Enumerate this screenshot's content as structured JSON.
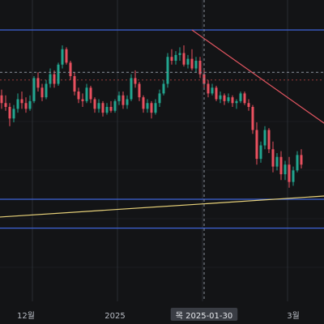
{
  "colors": {
    "background": "#131416",
    "grid": "#2a2d33",
    "up": "#22a58f",
    "down": "#e8505f",
    "horizontal_line": "#3e63d8",
    "resistance_trendline": "#e05560",
    "support_trendline": "#e8d27a",
    "crosshair": "#8a8f99",
    "reference_line": "#cf4a4a",
    "crosshair_tag": "#3a3d44"
  },
  "crosshair_label": "목 2025-01-30",
  "chart_data": {
    "type": "candlestick",
    "title": "",
    "xlabel": "",
    "ylabel": "",
    "x_axis_labels": [
      "12월",
      "2025",
      "3월"
    ],
    "y_axis_labels": [],
    "grid": true,
    "legend": "none",
    "ylim": [
      0,
      100
    ],
    "price_scale_note": "no price values printed; y in relative units 0-100",
    "candles": [
      {
        "o": 66,
        "h": 72,
        "l": 63,
        "c": 69
      },
      {
        "o": 69,
        "h": 71,
        "l": 62,
        "c": 64
      },
      {
        "o": 64,
        "h": 67,
        "l": 57,
        "c": 60
      },
      {
        "o": 60,
        "h": 64,
        "l": 56,
        "c": 58
      },
      {
        "o": 58,
        "h": 60,
        "l": 48,
        "c": 52
      },
      {
        "o": 52,
        "h": 59,
        "l": 50,
        "c": 57
      },
      {
        "o": 57,
        "h": 65,
        "l": 55,
        "c": 62
      },
      {
        "o": 62,
        "h": 66,
        "l": 57,
        "c": 60
      },
      {
        "o": 60,
        "h": 63,
        "l": 55,
        "c": 57
      },
      {
        "o": 57,
        "h": 64,
        "l": 56,
        "c": 61
      },
      {
        "o": 61,
        "h": 74,
        "l": 60,
        "c": 73
      },
      {
        "o": 73,
        "h": 76,
        "l": 66,
        "c": 68
      },
      {
        "o": 68,
        "h": 70,
        "l": 61,
        "c": 63
      },
      {
        "o": 63,
        "h": 72,
        "l": 62,
        "c": 70
      },
      {
        "o": 70,
        "h": 78,
        "l": 68,
        "c": 75
      },
      {
        "o": 75,
        "h": 77,
        "l": 68,
        "c": 70
      },
      {
        "o": 70,
        "h": 81,
        "l": 69,
        "c": 80
      },
      {
        "o": 80,
        "h": 90,
        "l": 78,
        "c": 88
      },
      {
        "o": 88,
        "h": 89,
        "l": 80,
        "c": 81
      },
      {
        "o": 81,
        "h": 82,
        "l": 72,
        "c": 74
      },
      {
        "o": 74,
        "h": 76,
        "l": 64,
        "c": 66
      },
      {
        "o": 66,
        "h": 68,
        "l": 60,
        "c": 62
      },
      {
        "o": 62,
        "h": 65,
        "l": 58,
        "c": 61
      },
      {
        "o": 61,
        "h": 70,
        "l": 60,
        "c": 68
      },
      {
        "o": 68,
        "h": 69,
        "l": 60,
        "c": 62
      },
      {
        "o": 62,
        "h": 63,
        "l": 55,
        "c": 57
      },
      {
        "o": 57,
        "h": 62,
        "l": 55,
        "c": 60
      },
      {
        "o": 60,
        "h": 61,
        "l": 53,
        "c": 55
      },
      {
        "o": 55,
        "h": 60,
        "l": 54,
        "c": 58
      },
      {
        "o": 58,
        "h": 61,
        "l": 55,
        "c": 56
      },
      {
        "o": 56,
        "h": 62,
        "l": 55,
        "c": 61
      },
      {
        "o": 61,
        "h": 66,
        "l": 59,
        "c": 64
      },
      {
        "o": 64,
        "h": 66,
        "l": 57,
        "c": 59
      },
      {
        "o": 59,
        "h": 64,
        "l": 57,
        "c": 62
      },
      {
        "o": 62,
        "h": 75,
        "l": 61,
        "c": 73
      },
      {
        "o": 73,
        "h": 77,
        "l": 68,
        "c": 70
      },
      {
        "o": 70,
        "h": 71,
        "l": 61,
        "c": 63
      },
      {
        "o": 63,
        "h": 64,
        "l": 55,
        "c": 57
      },
      {
        "o": 57,
        "h": 62,
        "l": 55,
        "c": 60
      },
      {
        "o": 60,
        "h": 61,
        "l": 52,
        "c": 55
      },
      {
        "o": 55,
        "h": 62,
        "l": 54,
        "c": 60
      },
      {
        "o": 60,
        "h": 67,
        "l": 58,
        "c": 65
      },
      {
        "o": 65,
        "h": 72,
        "l": 64,
        "c": 70
      },
      {
        "o": 70,
        "h": 86,
        "l": 68,
        "c": 84
      },
      {
        "o": 84,
        "h": 88,
        "l": 80,
        "c": 82
      },
      {
        "o": 82,
        "h": 87,
        "l": 80,
        "c": 85
      },
      {
        "o": 85,
        "h": 89,
        "l": 82,
        "c": 86
      },
      {
        "o": 86,
        "h": 90,
        "l": 79,
        "c": 80
      },
      {
        "o": 80,
        "h": 85,
        "l": 78,
        "c": 83
      },
      {
        "o": 83,
        "h": 88,
        "l": 77,
        "c": 78
      },
      {
        "o": 78,
        "h": 84,
        "l": 76,
        "c": 82
      },
      {
        "o": 82,
        "h": 84,
        "l": 73,
        "c": 75
      },
      {
        "o": 75,
        "h": 77,
        "l": 68,
        "c": 70
      },
      {
        "o": 70,
        "h": 72,
        "l": 63,
        "c": 65
      },
      {
        "o": 65,
        "h": 70,
        "l": 64,
        "c": 68
      },
      {
        "o": 68,
        "h": 69,
        "l": 61,
        "c": 62
      },
      {
        "o": 62,
        "h": 66,
        "l": 60,
        "c": 64
      },
      {
        "o": 64,
        "h": 65,
        "l": 59,
        "c": 61
      },
      {
        "o": 61,
        "h": 65,
        "l": 60,
        "c": 63
      },
      {
        "o": 63,
        "h": 64,
        "l": 58,
        "c": 60
      },
      {
        "o": 60,
        "h": 62,
        "l": 57,
        "c": 61
      },
      {
        "o": 61,
        "h": 66,
        "l": 60,
        "c": 65
      },
      {
        "o": 65,
        "h": 66,
        "l": 59,
        "c": 60
      },
      {
        "o": 60,
        "h": 62,
        "l": 56,
        "c": 58
      },
      {
        "o": 58,
        "h": 59,
        "l": 44,
        "c": 46
      },
      {
        "o": 46,
        "h": 50,
        "l": 28,
        "c": 31
      },
      {
        "o": 31,
        "h": 40,
        "l": 29,
        "c": 38
      },
      {
        "o": 38,
        "h": 48,
        "l": 36,
        "c": 46
      },
      {
        "o": 46,
        "h": 47,
        "l": 34,
        "c": 36
      },
      {
        "o": 36,
        "h": 40,
        "l": 24,
        "c": 27
      },
      {
        "o": 27,
        "h": 34,
        "l": 25,
        "c": 32
      },
      {
        "o": 32,
        "h": 35,
        "l": 20,
        "c": 23
      },
      {
        "o": 23,
        "h": 30,
        "l": 20,
        "c": 28
      },
      {
        "o": 28,
        "h": 32,
        "l": 16,
        "c": 19
      },
      {
        "o": 19,
        "h": 27,
        "l": 17,
        "c": 25
      },
      {
        "o": 25,
        "h": 35,
        "l": 24,
        "c": 33
      },
      {
        "o": 33,
        "h": 36,
        "l": 26,
        "c": 28
      }
    ],
    "x_label_candle_index": [
      8,
      30,
      74
    ],
    "crosshair_candle_index": 52,
    "crosshair_value": 76,
    "horizontal_lines": [
      {
        "name": "resistance",
        "value": 98
      },
      {
        "name": "support",
        "value": 10
      },
      {
        "name": "lower",
        "value": -5
      }
    ],
    "dashed_reference_value": 72,
    "trendlines": [
      {
        "name": "descending",
        "from": {
          "i": 49,
          "v": 98
        },
        "to": {
          "i": 84,
          "v": 46
        }
      },
      {
        "name": "ascending",
        "from": {
          "i": -4,
          "v": 0
        },
        "to": {
          "i": 84,
          "v": 12
        }
      }
    ]
  }
}
